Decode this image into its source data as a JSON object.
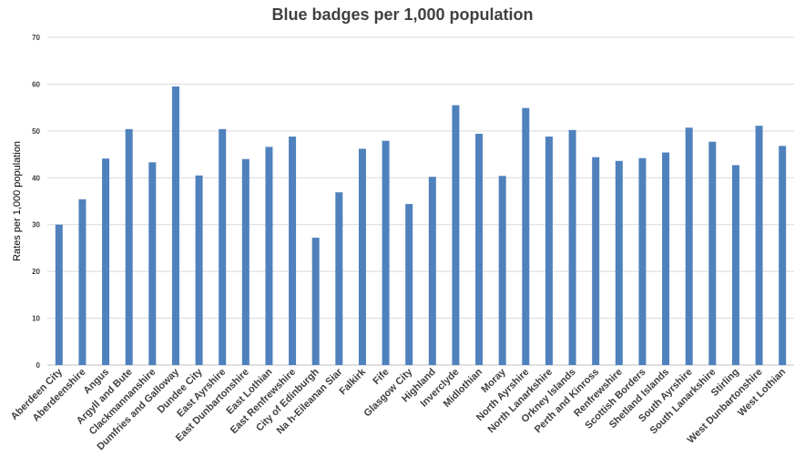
{
  "chart_data": {
    "type": "bar",
    "title": "Blue badges per 1,000 population",
    "xlabel": "",
    "ylabel": "Rates per 1,000 population",
    "ylim": [
      0,
      70
    ],
    "yticks": [
      0,
      10,
      20,
      30,
      40,
      50,
      60,
      70
    ],
    "grid": true,
    "legend": "none",
    "bar_color": "#4f81bd",
    "categories": [
      "Aberdeen City",
      "Aberdeenshire",
      "Angus",
      "Argyll and Bute",
      "Clackmannanshire",
      "Dumfries and Galloway",
      "Dundee City",
      "East Ayrshire",
      "East Dunbartonshire",
      "East Lothian",
      "East Renfrewshire",
      "City of Edinburgh",
      "Na h-Eileanan Siar",
      "Falkirk",
      "Fife",
      "Glasgow City",
      "Highland",
      "Inverclyde",
      "Midlothian",
      "Moray",
      "North Ayrshire",
      "North Lanarkshire",
      "Orkney Islands",
      "Perth and Kinross",
      "Renfrewshire",
      "Scottish Borders",
      "Shetland Islands",
      "South Ayrshire",
      "South Lanarkshire",
      "Stirling",
      "West Dunbartonshire",
      "West Lothian"
    ],
    "values": [
      30.0,
      35.4,
      44.1,
      50.4,
      43.3,
      59.5,
      40.5,
      50.4,
      44.0,
      46.6,
      48.8,
      27.2,
      36.9,
      46.2,
      47.9,
      34.4,
      40.2,
      55.5,
      49.4,
      40.4,
      54.9,
      48.8,
      50.2,
      44.4,
      43.6,
      44.2,
      45.4,
      50.7,
      47.7,
      42.7,
      51.1,
      46.8
    ]
  }
}
